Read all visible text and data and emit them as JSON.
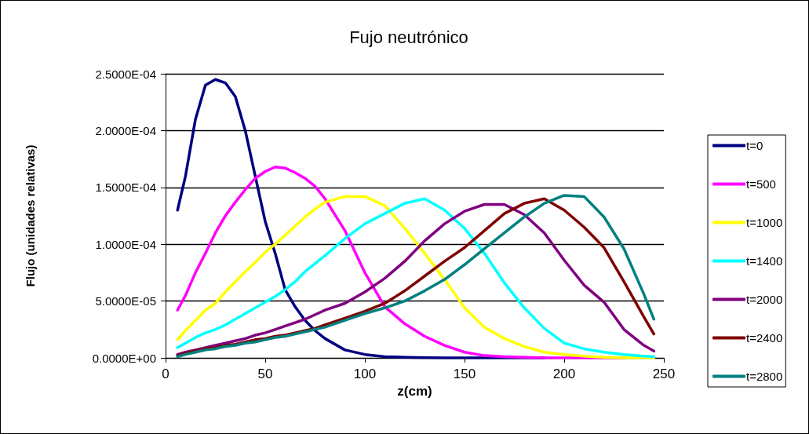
{
  "chart_data": {
    "type": "line",
    "title": "Fujo neutrónico",
    "xlabel": "z(cm)",
    "ylabel": "Flujo (unidades relativas)",
    "x": [
      6,
      10,
      15,
      20,
      25,
      30,
      35,
      40,
      45,
      50,
      55,
      60,
      65,
      70,
      75,
      80,
      90,
      100,
      110,
      120,
      130,
      140,
      150,
      160,
      170,
      180,
      190,
      200,
      210,
      220,
      230,
      240,
      245
    ],
    "series": [
      {
        "name": "t=0",
        "color": "#000080",
        "values": [
          0.00013,
          0.00016,
          0.00021,
          0.00024,
          0.000245,
          0.000242,
          0.00023,
          0.0002,
          0.00016,
          0.00012,
          9.2e-05,
          6e-05,
          4.5e-05,
          3.3e-05,
          2.4e-05,
          1.7e-05,
          7e-06,
          3e-06,
          1e-06,
          5e-07,
          2e-07,
          0,
          0,
          0,
          0,
          0,
          0,
          null,
          null,
          null,
          null,
          null,
          null
        ]
      },
      {
        "name": "t=500",
        "color": "#ff00ff",
        "values": [
          4.2e-05,
          5.5e-05,
          7.5e-05,
          9.2e-05,
          0.00011,
          0.000125,
          0.000137,
          0.000148,
          0.000158,
          0.000164,
          0.000168,
          0.000167,
          0.000163,
          0.000158,
          0.000151,
          0.00014,
          0.000112,
          7.5e-05,
          4.5e-05,
          3e-05,
          1.9e-05,
          1.1e-05,
          5e-06,
          2e-06,
          1e-06,
          5e-07,
          0,
          0,
          0,
          0,
          0,
          null,
          null
        ]
      },
      {
        "name": "t=1000",
        "color": "#ffff00",
        "values": [
          1.6e-05,
          2.4e-05,
          3.3e-05,
          4.2e-05,
          4.8e-05,
          5.8e-05,
          6.7e-05,
          7.6e-05,
          8.4e-05,
          9.3e-05,
          0.0001,
          0.000108,
          0.000116,
          0.000124,
          0.000131,
          0.000137,
          0.000142,
          0.000142,
          0.000134,
          0.000114,
          9.2e-05,
          6.9e-05,
          4.4e-05,
          2.7e-05,
          1.7e-05,
          1e-05,
          5e-06,
          3e-06,
          1.5e-06,
          5e-07,
          0,
          0,
          0
        ]
      },
      {
        "name": "t=1400",
        "color": "#00ffff",
        "values": [
          9e-06,
          1.3e-05,
          1.8e-05,
          2.2e-05,
          2.5e-05,
          2.9e-05,
          3.4e-05,
          3.9e-05,
          4.4e-05,
          4.9e-05,
          5.4e-05,
          6e-05,
          6.7e-05,
          7.6e-05,
          8.3e-05,
          9e-05,
          0.000105,
          0.000118,
          0.000127,
          0.000136,
          0.00014,
          0.00013,
          0.000114,
          9.2e-05,
          6.6e-05,
          4.4e-05,
          2.6e-05,
          1.3e-05,
          8e-06,
          5e-06,
          3e-06,
          1.5e-06,
          1e-06
        ]
      },
      {
        "name": "t=2000",
        "color": "#800080",
        "values": [
          3e-06,
          5e-06,
          7e-06,
          9e-06,
          1.1e-05,
          1.3e-05,
          1.5e-05,
          1.7e-05,
          2e-05,
          2.2e-05,
          2.5e-05,
          2.8e-05,
          3.1e-05,
          3.4e-05,
          3.8e-05,
          4.2e-05,
          4.8e-05,
          5.8e-05,
          7e-05,
          8.5e-05,
          0.000103,
          0.000118,
          0.000129,
          0.000135,
          0.000135,
          0.000126,
          0.00011,
          8.6e-05,
          6.4e-05,
          4.9e-05,
          2.5e-05,
          1.1e-05,
          6e-06
        ]
      },
      {
        "name": "t=2400",
        "color": "#800000",
        "values": [
          2e-06,
          4e-06,
          6e-06,
          8e-06,
          9e-06,
          1.1e-05,
          1.2e-05,
          1.4e-05,
          1.6e-05,
          1.7e-05,
          1.9e-05,
          2e-05,
          2.2e-05,
          2.4e-05,
          2.6e-05,
          2.9e-05,
          3.5e-05,
          4.1e-05,
          4.8e-05,
          5.9e-05,
          7.2e-05,
          8.5e-05,
          9.7e-05,
          0.000112,
          0.000127,
          0.000136,
          0.00014,
          0.00013,
          0.000115,
          9.7e-05,
          6.7e-05,
          3.6e-05,
          2.1e-05
        ]
      },
      {
        "name": "t=2800",
        "color": "#008080",
        "values": [
          1e-06,
          3e-06,
          5e-06,
          7e-06,
          8e-06,
          1e-05,
          1.1e-05,
          1.3e-05,
          1.4e-05,
          1.6e-05,
          1.8e-05,
          1.9e-05,
          2.1e-05,
          2.3e-05,
          2.5e-05,
          2.7e-05,
          3.3e-05,
          3.9e-05,
          4.4e-05,
          5e-05,
          5.9e-05,
          6.9e-05,
          8.2e-05,
          9.6e-05,
          0.00011,
          0.000124,
          0.000136,
          0.000143,
          0.000142,
          0.000124,
          9.6e-05,
          5.6e-05,
          3.4e-05
        ]
      }
    ],
    "xlim": [
      0,
      250
    ],
    "xticks": [
      0,
      50,
      100,
      150,
      200,
      250
    ],
    "ylim": [
      0,
      0.00025
    ],
    "yticks": [
      {
        "value": 0,
        "label": "0.0000E+00"
      },
      {
        "value": 5e-05,
        "label": "5.0000E-05"
      },
      {
        "value": 0.0001,
        "label": "1.0000E-04"
      },
      {
        "value": 0.00015,
        "label": "1.5000E-04"
      },
      {
        "value": 0.0002,
        "label": "2.0000E-04"
      },
      {
        "value": 0.00025,
        "label": "2.5000E-04"
      }
    ],
    "grid": "y",
    "legend": "right",
    "marker": "none",
    "line_style": "solid"
  }
}
